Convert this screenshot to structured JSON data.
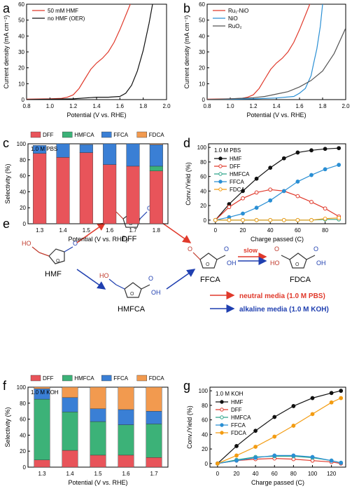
{
  "chart_data": [
    {
      "panel": "a",
      "type": "line",
      "xlabel": "Potential (V vs. RHE)",
      "ylabel": "Current density (mA cm⁻²)",
      "xlim": [
        0.8,
        2.0
      ],
      "ylim": [
        0,
        60
      ],
      "xticks": [
        "0.8",
        "1.0",
        "1.2",
        "1.4",
        "1.6",
        "1.8",
        "2.0"
      ],
      "yticks": [
        "0",
        "10",
        "20",
        "30",
        "40",
        "50",
        "60"
      ],
      "legend": "top-left",
      "series": [
        {
          "name": "50 mM HMF",
          "color": "#e0392b",
          "x": [
            0.8,
            1.0,
            1.1,
            1.15,
            1.2,
            1.25,
            1.3,
            1.35,
            1.4,
            1.45,
            1.5,
            1.55,
            1.6,
            1.65,
            1.7
          ],
          "y": [
            0.3,
            0.5,
            0.8,
            1.5,
            3,
            7,
            13,
            19,
            23,
            26,
            30,
            36,
            44,
            53,
            62
          ]
        },
        {
          "name": "no HMF (OER)",
          "color": "#111111",
          "x": [
            0.8,
            1.0,
            1.2,
            1.3,
            1.4,
            1.5,
            1.6,
            1.65,
            1.7,
            1.75,
            1.8,
            1.85,
            1.88
          ],
          "y": [
            0,
            0.3,
            0.5,
            1,
            1.5,
            1.5,
            2,
            4,
            9,
            18,
            31,
            48,
            60
          ]
        }
      ]
    },
    {
      "panel": "b",
      "type": "line",
      "xlabel": "Potential (V vs. RHE)",
      "ylabel": "Current density (mA cm⁻²)",
      "xlim": [
        0.8,
        2.0
      ],
      "ylim": [
        0,
        60
      ],
      "xticks": [
        "0.8",
        "1.0",
        "1.2",
        "1.4",
        "1.6",
        "1.8",
        "2.0"
      ],
      "yticks": [
        "0",
        "10",
        "20",
        "30",
        "40",
        "50",
        "60"
      ],
      "legend": "top-left",
      "series": [
        {
          "name": "Ru₁-NiO",
          "color": "#e0392b",
          "x": [
            0.8,
            1.0,
            1.1,
            1.15,
            1.2,
            1.25,
            1.3,
            1.35,
            1.4,
            1.45,
            1.5,
            1.55,
            1.6,
            1.65,
            1.7
          ],
          "y": [
            0.3,
            0.5,
            0.8,
            1.5,
            3,
            7,
            13,
            19,
            23,
            26,
            30,
            36,
            44,
            53,
            62
          ]
        },
        {
          "name": "NiO",
          "color": "#2a8fd4",
          "x": [
            0.8,
            1.2,
            1.4,
            1.55,
            1.6,
            1.65,
            1.7,
            1.72,
            1.75,
            1.78,
            1.8
          ],
          "y": [
            0,
            0.5,
            1,
            2,
            4,
            7,
            15,
            22,
            32,
            46,
            60
          ]
        },
        {
          "name": "RuO₂",
          "color": "#555555",
          "x": [
            0.8,
            1.0,
            1.2,
            1.3,
            1.4,
            1.5,
            1.6,
            1.7,
            1.8,
            1.9,
            2.0
          ],
          "y": [
            0,
            0.5,
            1.2,
            2,
            3.5,
            5,
            8,
            12,
            18,
            29,
            45
          ]
        }
      ]
    },
    {
      "panel": "c",
      "type": "bar",
      "annotation": "1.0 M PBS",
      "xlabel": "Potential (V vs. RHE)",
      "ylabel": "Selectivity (%)",
      "ylim": [
        0,
        100
      ],
      "yticks": [
        "0",
        "20",
        "40",
        "60",
        "80",
        "100"
      ],
      "categories": [
        "1.3",
        "1.4",
        "1.5",
        "1.6",
        "1.7",
        "1.8"
      ],
      "stacked": true,
      "legend": "top",
      "series": [
        {
          "name": "DFF",
          "color": "#e8545a",
          "values": [
            88,
            83,
            89,
            74,
            72,
            66
          ]
        },
        {
          "name": "HMFCA",
          "color": "#3cb278",
          "values": [
            0,
            0,
            0,
            0,
            0,
            6
          ]
        },
        {
          "name": "FFCA",
          "color": "#3a7fd5",
          "values": [
            10,
            17,
            10,
            26,
            28,
            27
          ]
        },
        {
          "name": "FDCA",
          "color": "#f29a4f",
          "values": [
            0,
            0,
            0,
            0,
            0,
            1
          ]
        }
      ]
    },
    {
      "panel": "d",
      "type": "line",
      "annotation": "1.0 M PBS",
      "xlabel": "Charge passed (C)",
      "ylabel": "Conv./Yield (%)",
      "xlim": [
        -5,
        95
      ],
      "ylim": [
        -5,
        105
      ],
      "xticks": [
        "0",
        "20",
        "40",
        "60",
        "80"
      ],
      "yticks": [
        "0",
        "20",
        "40",
        "60",
        "80",
        "100"
      ],
      "legend": "top-left",
      "series": [
        {
          "name": "HMF",
          "color": "#111111",
          "marker": "#111111",
          "x": [
            0,
            10,
            20,
            30,
            40,
            50,
            60,
            70,
            80,
            90
          ],
          "y": [
            0,
            22,
            40,
            57,
            72,
            85,
            93,
            96,
            98,
            99
          ]
        },
        {
          "name": "DFF",
          "color": "#e0392b",
          "marker": "#ffffff",
          "x": [
            0,
            10,
            20,
            30,
            40,
            50,
            60,
            70,
            80,
            90
          ],
          "y": [
            0,
            18,
            30,
            38,
            42,
            40,
            33,
            25,
            16,
            5
          ]
        },
        {
          "name": "HMFCA",
          "color": "#2fa58a",
          "marker": "#ffffff",
          "x": [
            0,
            10,
            20,
            30,
            40,
            50,
            60,
            70,
            80,
            90
          ],
          "y": [
            0,
            0,
            0,
            0,
            0,
            0,
            0,
            0,
            1,
            1
          ]
        },
        {
          "name": "FFCA",
          "color": "#2a8fd4",
          "marker": "#2a8fd4",
          "x": [
            0,
            10,
            20,
            30,
            40,
            50,
            60,
            70,
            80,
            90
          ],
          "y": [
            0,
            4,
            9,
            17,
            27,
            40,
            53,
            62,
            70,
            76
          ]
        },
        {
          "name": "FDCA",
          "color": "#f39c12",
          "marker": "#ffffff",
          "x": [
            0,
            10,
            20,
            30,
            40,
            50,
            60,
            70,
            80,
            90
          ],
          "y": [
            0,
            0,
            0,
            0,
            0,
            0,
            0,
            0,
            2,
            3
          ]
        }
      ]
    },
    {
      "panel": "f",
      "type": "bar",
      "annotation": "1.0 M KOH",
      "xlabel": "Potential (V vs. RHE)",
      "ylabel": "Selectivity (%)",
      "ylim": [
        0,
        100
      ],
      "yticks": [
        "0",
        "20",
        "40",
        "60",
        "80",
        "100"
      ],
      "categories": [
        "1.3",
        "1.4",
        "1.5",
        "1.6",
        "1.7"
      ],
      "stacked": true,
      "legend": "top",
      "series": [
        {
          "name": "DFF",
          "color": "#e8545a",
          "values": [
            9,
            21,
            15,
            15,
            12
          ]
        },
        {
          "name": "HMFCA",
          "color": "#3cb278",
          "values": [
            76,
            48,
            42,
            38,
            42
          ]
        },
        {
          "name": "FFCA",
          "color": "#3a7fd5",
          "values": [
            13,
            18,
            16,
            19,
            16
          ]
        },
        {
          "name": "FDCA",
          "color": "#f29a4f",
          "values": [
            2,
            13,
            27,
            28,
            30
          ]
        }
      ]
    },
    {
      "panel": "g",
      "type": "line",
      "annotation": "1.0 M KOH",
      "xlabel": "Charge passed (C)",
      "ylabel": "Conv./Yield (%)",
      "xlim": [
        -8,
        135
      ],
      "ylim": [
        -5,
        105
      ],
      "xticks": [
        "0",
        "20",
        "40",
        "60",
        "80",
        "100",
        "120"
      ],
      "yticks": [
        "0",
        "20",
        "40",
        "60",
        "80",
        "100"
      ],
      "legend": "top-left",
      "series": [
        {
          "name": "HMF",
          "color": "#111111",
          "marker": "#111111",
          "x": [
            0,
            20,
            40,
            60,
            80,
            100,
            120,
            130
          ],
          "y": [
            0,
            24,
            45,
            64,
            79,
            90,
            97,
            100
          ]
        },
        {
          "name": "DFF",
          "color": "#e0392b",
          "marker": "#ffffff",
          "x": [
            0,
            20,
            40,
            60,
            80,
            100,
            120,
            130
          ],
          "y": [
            0,
            4,
            6,
            7,
            6,
            4,
            2,
            0
          ]
        },
        {
          "name": "HMFCA",
          "color": "#2fa58a",
          "marker": "#ffffff",
          "x": [
            0,
            20,
            40,
            60,
            80,
            100,
            120,
            130
          ],
          "y": [
            0,
            5,
            9,
            10,
            10,
            8,
            4,
            1
          ]
        },
        {
          "name": "FFCA",
          "color": "#2a8fd4",
          "marker": "#2a8fd4",
          "x": [
            0,
            20,
            40,
            60,
            80,
            100,
            120,
            130
          ],
          "y": [
            0,
            4,
            8,
            11,
            11,
            9,
            4,
            1
          ]
        },
        {
          "name": "FDCA",
          "color": "#f39c12",
          "marker": "#f39c12",
          "x": [
            0,
            20,
            40,
            60,
            80,
            100,
            120,
            130
          ],
          "y": [
            0,
            11,
            23,
            37,
            52,
            68,
            84,
            90
          ]
        }
      ]
    }
  ],
  "scheme": {
    "panel_label": "e",
    "labels": {
      "hmf": "HMF",
      "dff": "DFF",
      "hmfca": "HMFCA",
      "ffca": "FFCA",
      "fdca": "FDCA",
      "slow": "slow"
    },
    "legend": {
      "neutral": "neutral media (1.0 M PBS)",
      "alkaline": "alkaline media (1.0 M KOH)"
    },
    "colors": {
      "neutral": "#e0392b",
      "alkaline": "#1f3fb0"
    }
  },
  "panel_labels": [
    "a",
    "b",
    "c",
    "d",
    "f",
    "g"
  ]
}
